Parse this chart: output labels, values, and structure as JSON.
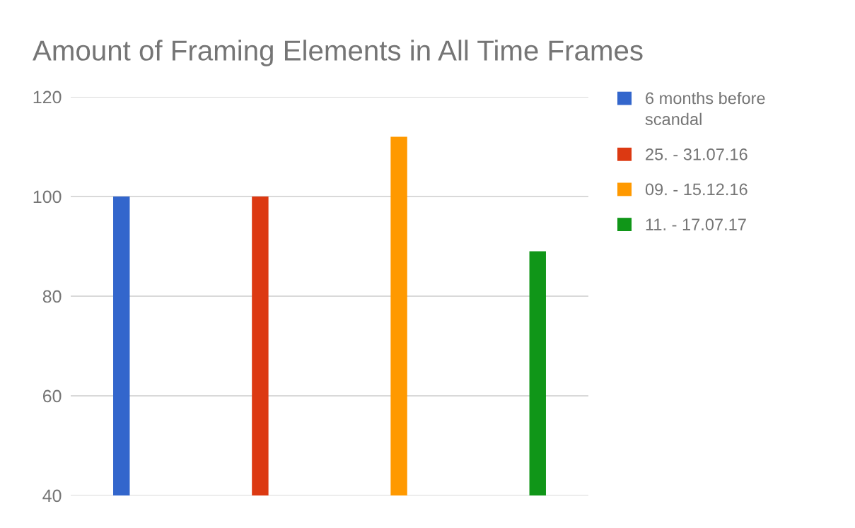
{
  "chart_data": {
    "type": "bar",
    "title": "Amount of Framing Elements in All Time Frames",
    "categories": [
      null
    ],
    "series": [
      {
        "name": "6 months before scandal",
        "color": "#3366cc",
        "values": [
          100
        ]
      },
      {
        "name": "25. - 31.07.16",
        "color": "#dc3912",
        "values": [
          100
        ]
      },
      {
        "name": "09. - 15.12.16",
        "color": "#ff9900",
        "values": [
          112
        ]
      },
      {
        "name": "11. - 17.07.17",
        "color": "#109618",
        "values": [
          89
        ]
      }
    ],
    "ylim": [
      40,
      120
    ],
    "yticks": [
      40,
      60,
      80,
      100,
      120
    ],
    "grid": "y",
    "legend": "right",
    "tick_labels": "y"
  }
}
